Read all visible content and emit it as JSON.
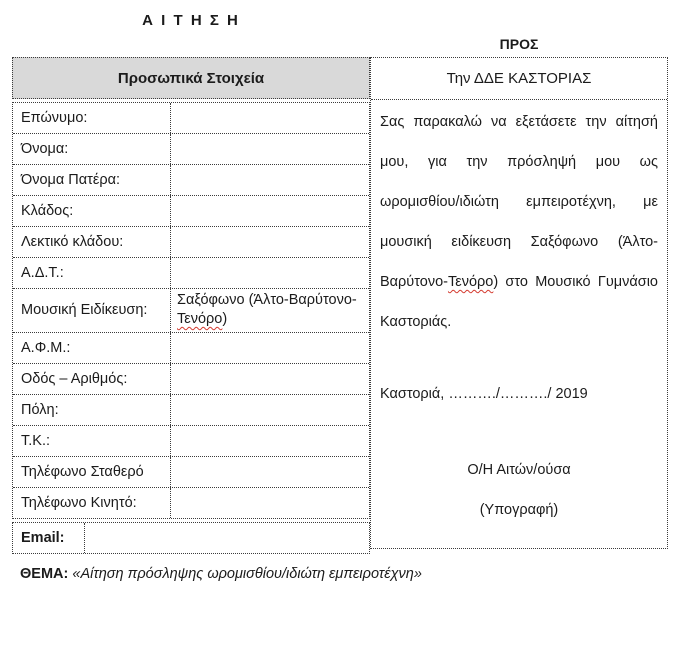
{
  "page": {
    "title": "Α Ι Τ Η Σ Η",
    "pros_label": "ΠΡΟΣ"
  },
  "personal_table": {
    "header": "Προσωπικά Στοιχεία",
    "rows": [
      {
        "label": "Επώνυμο:",
        "value": ""
      },
      {
        "label": "Όνομα:",
        "value": ""
      },
      {
        "label": "Όνομα Πατέρα:",
        "value": ""
      },
      {
        "label": "Κλάδος:",
        "value": ""
      },
      {
        "label": "Λεκτικό κλάδου:",
        "value": ""
      },
      {
        "label": "Α.Δ.Τ.:",
        "value": ""
      },
      {
        "label": "Μουσική Ειδίκευση:",
        "value_before": "Σαξόφωνο (Άλτο-Βαρύτονο-",
        "value_marked": "Τενόρο",
        "value_after": ")"
      },
      {
        "label": "Α.Φ.Μ.:",
        "value": ""
      },
      {
        "label": "Οδός – Αριθμός:",
        "value": ""
      },
      {
        "label": "Πόλη:",
        "value": ""
      },
      {
        "label": "Τ.Κ.:",
        "value": ""
      },
      {
        "label": "Τηλέφωνο Σταθερό",
        "value": ""
      },
      {
        "label": "Τηλέφωνο Κινητό:",
        "value": ""
      }
    ],
    "email_row": {
      "label": "Email:",
      "value": ""
    }
  },
  "right_column": {
    "recipient": "Την ΔΔΕ ΚΑΣΤΟΡΙΑΣ",
    "body_before": "Σας παρακαλώ να εξετάσετε την αίτησή μου, για την πρόσληψή μου ως ωρομισθίου/ιδιώτη εμπειροτέχνη, με μουσική ειδίκευση Σαξόφωνο (Άλτο-Βαρύτονο-",
    "body_marked": "Τενόρο",
    "body_after": ") στο Μουσικό Γυμνάσιο Καστοριάς.",
    "date_line": "Καστοριά, ………./………./  2019",
    "applicant_line": "Ο/Η Αιτών/ούσα",
    "signature_line": "(Υπογραφή)"
  },
  "subject": {
    "label": "ΘΕΜΑ:",
    "text": "«Αίτηση πρόσληψης ωρομισθίου/ιδιώτη εμπειροτέχνη»"
  },
  "colors": {
    "header_fill": "#d9d9d9",
    "border": "#3c3c3c",
    "spellcheck": "#d43a2f"
  }
}
